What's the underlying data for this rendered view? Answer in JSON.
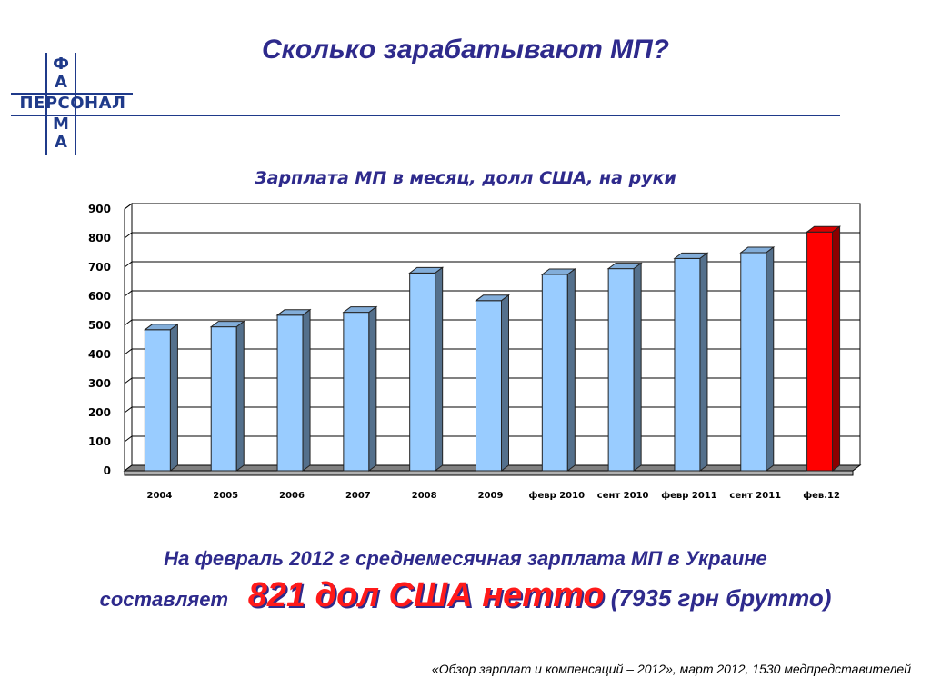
{
  "logo": {
    "letter_top_1": "Ф",
    "letter_top_2": "А",
    "word": "ПЕРСОНАЛ",
    "letter_bottom_1": "М",
    "letter_bottom_2": "А",
    "color": "#1f3a8a"
  },
  "main_title": "Сколько зарабатывают МП?",
  "chart_title": "Зарплата МП в месяц, долл США, на руки",
  "chart_data": {
    "type": "bar",
    "title": "Зарплата МП в месяц, долл США, на руки",
    "categories": [
      "2004",
      "2005",
      "2006",
      "2007",
      "2008",
      "2009",
      "февр 2010",
      "сент 2010",
      "февр 2011",
      "сент 2011",
      "фев.12"
    ],
    "values": [
      485,
      495,
      535,
      545,
      680,
      585,
      675,
      695,
      730,
      750,
      821
    ],
    "ylim": [
      0,
      900
    ],
    "yticks": [
      "0",
      "100",
      "200",
      "300",
      "400",
      "500",
      "600",
      "700",
      "800",
      "900"
    ],
    "grid": true,
    "bar_color": "#99ccff",
    "highlight_color": "#ff0000",
    "highlight_index": 10,
    "xlabel": "",
    "ylabel": ""
  },
  "summary": {
    "line1": "На февраль 2012 г среднемесячная  зарплата МП в Украине",
    "line2_prefix": "составляет",
    "line2_highlight": "821 дол США нетто",
    "line2_suffix": "(7935 грн брутто)"
  },
  "source": "«Обзор зарплат и компенсаций – 2012», март 2012, 1530 медпредставителей"
}
